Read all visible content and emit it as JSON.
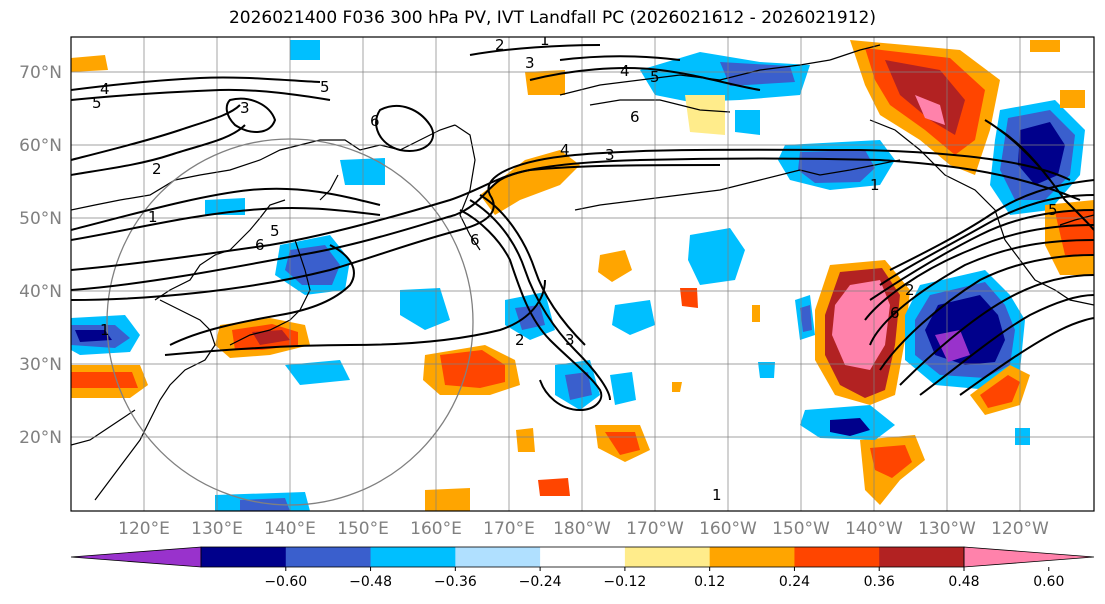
{
  "title": "2026021400 F036 300 hPa PV, IVT Landfall PC (2026021612 - 2026021912)",
  "map": {
    "lat_labels": [
      "70°N",
      "60°N",
      "50°N",
      "40°N",
      "30°N",
      "20°N"
    ],
    "lon_labels": [
      "120°E",
      "130°E",
      "140°E",
      "150°E",
      "160°E",
      "170°E",
      "180°W",
      "170°W",
      "160°W",
      "150°W",
      "140°W",
      "130°W",
      "120°W"
    ],
    "contour_labels": [
      "1",
      "2",
      "3",
      "4",
      "5",
      "6"
    ]
  },
  "colorbar": {
    "ticks": [
      "−0.60",
      "−0.48",
      "−0.36",
      "−0.24",
      "−0.12",
      "0.12",
      "0.24",
      "0.36",
      "0.48",
      "0.60"
    ],
    "colors": [
      "#9932cc",
      "#00008b",
      "#3a5fcd",
      "#00bfff",
      "#b0e0ff",
      "#ffffff",
      "#ffec8b",
      "#ffa500",
      "#ff4500",
      "#b22222",
      "#ff82ab"
    ]
  },
  "legend_colors": {
    "neg_strong": "#00008b",
    "neg_mid": "#3a5fcd",
    "neg_light": "#00bfff",
    "pos_light": "#ffa500",
    "pos_mid": "#ff4500",
    "pos_strong": "#b22222",
    "pos_extreme": "#ff82ab"
  }
}
